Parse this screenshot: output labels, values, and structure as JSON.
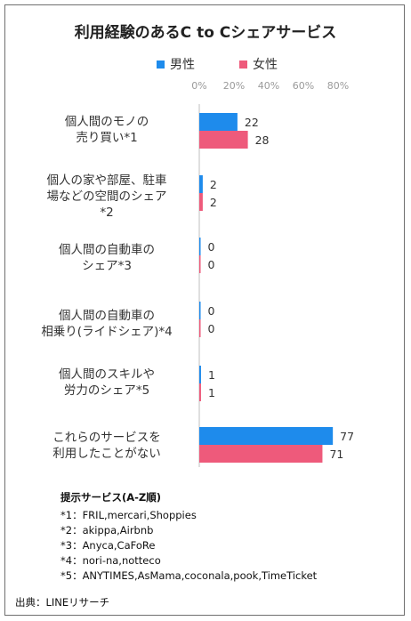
{
  "title": "利用経験のあるC to Cシェアサービス",
  "legend": {
    "male": "男性",
    "female": "女性"
  },
  "colors": {
    "male": "#1e8bec",
    "female": "#ee5a7b",
    "axis": "#bfbfbf",
    "tick": "#9a9a9a"
  },
  "notes": {
    "heading": "提示サービス(A-Z順)",
    "lines": [
      "*1：FRIL,mercari,Shoppies",
      "*2：akippa,Airbnb",
      "*3：Anyca,CaFoRe",
      "*4：nori-na,notteco",
      "*5：ANYTIMES,AsMama,coconala,pook,TimeTicket"
    ]
  },
  "source": "出典：LINEリサーチ",
  "chart_data": {
    "type": "bar",
    "orientation": "horizontal",
    "title": "利用経験のあるC to Cシェアサービス",
    "xlim": [
      0,
      80
    ],
    "x_ticks": [
      "0%",
      "20%",
      "40%",
      "60%",
      "80%"
    ],
    "grid": false,
    "legend_position": "top",
    "categories": [
      "個人間のモノの\n売り買い*1",
      "個人の家や部屋、駐車\n場などの空間のシェア\n*2",
      "個人間の自動車の\nシェア*3",
      "個人間の自動車の\n相乗り(ライドシェア)*4",
      "個人間のスキルや\n労力のシェア*5",
      "これらのサービスを\n利用したことがない"
    ],
    "series": [
      {
        "name": "男性",
        "values": [
          22,
          2,
          0,
          0,
          1,
          77
        ]
      },
      {
        "name": "女性",
        "values": [
          28,
          2,
          0,
          0,
          1,
          71
        ]
      }
    ]
  }
}
